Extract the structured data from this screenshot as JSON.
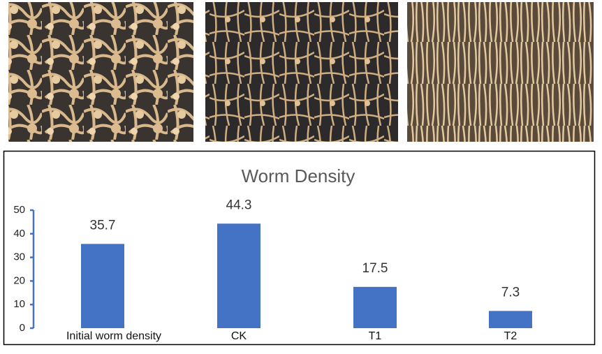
{
  "chart_data": {
    "type": "bar",
    "title": "Worm Density",
    "categories": [
      "Initial worm density",
      "CK",
      "T1",
      "T2"
    ],
    "values": [
      35.7,
      44.3,
      17.5,
      7.3
    ],
    "color": "#4472c4",
    "ylim": [
      0,
      50
    ],
    "yticks": [
      0,
      10,
      20,
      30,
      40,
      50
    ]
  }
}
